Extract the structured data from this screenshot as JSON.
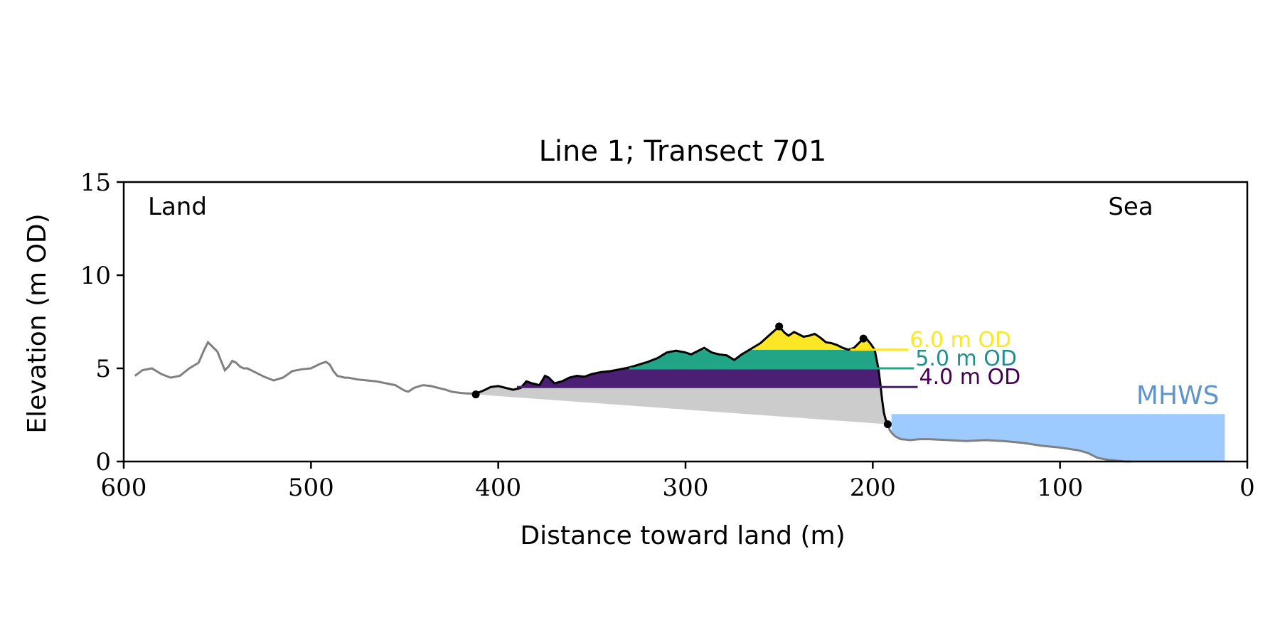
{
  "chart_data": {
    "type": "area",
    "title": "Line 1; Transect 701",
    "xlabel": "Distance toward land (m)",
    "ylabel": "Elevation (m OD)",
    "xlim": [
      600,
      0
    ],
    "ylim": [
      0,
      15
    ],
    "x_ticks": [
      600,
      500,
      400,
      300,
      200,
      100,
      0
    ],
    "y_ticks": [
      0,
      5,
      10,
      15
    ],
    "x_tick_labels": [
      "600",
      "500",
      "400",
      "300",
      "200",
      "100",
      "0"
    ],
    "y_tick_labels": [
      "0",
      "5",
      "10",
      "15"
    ],
    "grid": false,
    "corner_labels": {
      "left": "Land",
      "right": "Sea"
    },
    "colors": {
      "profile_outside": "#808080",
      "profile_dune": "#000000",
      "below_dune": "#cccccc",
      "mhws_fill": "#9ecbff",
      "mhws_text": "#5f95c8",
      "band_4": "#4b1f74",
      "band_5": "#22a586",
      "band_6": "#fde725",
      "label_4": "#440154",
      "label_5": "#21908d",
      "label_6": "#fde725"
    },
    "profile": {
      "x": [
        594,
        590,
        585,
        580,
        575,
        570,
        565,
        560,
        557,
        555,
        552,
        550,
        548,
        546,
        544,
        542,
        540,
        538,
        536,
        534,
        530,
        525,
        520,
        515,
        510,
        505,
        500,
        495,
        492,
        490,
        488,
        486,
        484,
        482,
        480,
        475,
        470,
        465,
        460,
        455,
        450,
        448,
        445,
        442,
        440,
        436,
        432,
        428,
        425,
        420,
        416,
        412,
        408,
        404,
        400,
        396,
        392,
        388,
        385,
        382,
        378,
        375,
        373,
        370,
        366,
        362,
        358,
        354,
        350,
        345,
        340,
        335,
        330,
        325,
        320,
        315,
        310,
        305,
        300,
        297,
        294,
        290,
        286,
        282,
        278,
        274,
        270,
        265,
        260,
        255,
        250,
        247,
        245,
        242,
        240,
        237,
        234,
        231,
        228,
        225,
        222,
        219,
        216,
        213,
        210,
        207,
        205,
        203,
        201,
        199,
        197,
        196,
        195,
        194,
        193,
        192,
        191,
        190,
        188,
        185,
        180,
        175,
        170,
        160,
        150,
        140,
        130,
        120,
        110,
        100,
        90,
        85,
        80,
        75,
        70,
        65,
        62
      ],
      "y": [
        4.6,
        4.9,
        5.0,
        4.7,
        4.5,
        4.6,
        5.0,
        5.3,
        6.0,
        6.4,
        6.1,
        5.9,
        5.4,
        4.9,
        5.1,
        5.4,
        5.3,
        5.1,
        5.0,
        5.0,
        4.8,
        4.55,
        4.35,
        4.5,
        4.85,
        4.95,
        5.0,
        5.25,
        5.35,
        5.2,
        4.85,
        4.6,
        4.55,
        4.5,
        4.5,
        4.4,
        4.35,
        4.3,
        4.2,
        4.1,
        3.8,
        3.75,
        3.95,
        4.05,
        4.1,
        4.05,
        3.95,
        3.85,
        3.75,
        3.68,
        3.65,
        3.65,
        3.8,
        4.0,
        4.05,
        3.95,
        3.85,
        3.95,
        4.3,
        4.2,
        4.1,
        4.6,
        4.5,
        4.2,
        4.3,
        4.5,
        4.6,
        4.55,
        4.7,
        4.8,
        4.85,
        4.95,
        5.05,
        5.2,
        5.35,
        5.55,
        5.85,
        5.95,
        5.85,
        5.75,
        5.9,
        6.1,
        5.85,
        5.75,
        5.7,
        5.45,
        5.75,
        6.05,
        6.35,
        6.8,
        7.25,
        6.9,
        6.75,
        6.95,
        6.85,
        6.7,
        6.75,
        6.85,
        6.65,
        6.4,
        6.35,
        6.25,
        6.1,
        6.0,
        6.1,
        6.4,
        6.6,
        6.55,
        6.3,
        6.0,
        5.0,
        4.2,
        3.3,
        2.6,
        2.2,
        2.1,
        1.7,
        1.55,
        1.35,
        1.2,
        1.15,
        1.2,
        1.2,
        1.15,
        1.1,
        1.15,
        1.1,
        1.0,
        0.85,
        0.75,
        0.6,
        0.45,
        0.2,
        0.1,
        0.05,
        0.0,
        0.0
      ]
    },
    "dune_range": [
      412,
      192
    ],
    "toe_line": {
      "from": [
        412,
        3.6
      ],
      "to": [
        192,
        2.0
      ]
    },
    "markers": [
      {
        "x": 412,
        "y": 3.6
      },
      {
        "x": 250,
        "y": 7.25
      },
      {
        "x": 205,
        "y": 6.6
      },
      {
        "x": 192,
        "y": 2.0
      }
    ],
    "mhws": {
      "label": "MHWS",
      "level": 2.55,
      "x_from": 190,
      "x_to": 12
    },
    "thresholds": [
      {
        "level": 4.0,
        "label": "4.0 m OD",
        "x_from": 390,
        "line_to": 176,
        "color_key": "band_4",
        "label_color_key": "label_4"
      },
      {
        "level": 5.0,
        "label": "5.0 m OD",
        "x_from": 330,
        "line_to": 178,
        "color_key": "band_5",
        "label_color_key": "label_5"
      },
      {
        "level": 6.0,
        "label": "6.0 m OD",
        "x_from": 212,
        "line_to": 181,
        "color_key": "band_6",
        "label_color_key": "label_6"
      }
    ]
  }
}
